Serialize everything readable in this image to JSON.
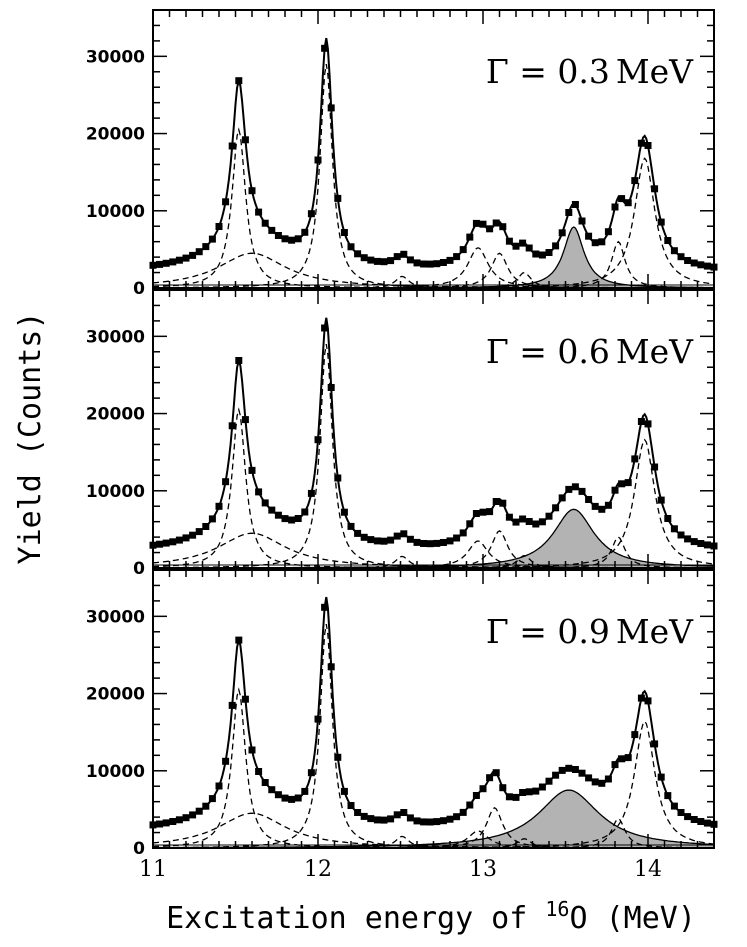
{
  "chart_data": {
    "type": "line",
    "xlabel_prefix": "Excitation energy of ",
    "xlabel_mass": "16",
    "xlabel_suffix": "O (MeV)",
    "ylabel": "Yield (Counts)",
    "xlim": [
      11.0,
      14.4
    ],
    "ylim": [
      0,
      36000
    ],
    "x_ticks": [
      11,
      12,
      13,
      14
    ],
    "y_ticks": [
      0,
      10000,
      20000,
      30000
    ],
    "legend": "none",
    "panels": [
      {
        "label_prefix": "Γ = ",
        "label_value": "0.3",
        "label_unit": "MeV",
        "background": 2000,
        "data_points": "yield_counts",
        "components": [
          {
            "name": "11.52 MeV peak",
            "center": 11.52,
            "amplitude": 20500,
            "width": 0.1,
            "shaded": false
          },
          {
            "name": "broad 11.6 MeV",
            "center": 11.6,
            "amplitude": 4500,
            "width": 0.5,
            "shaded": false
          },
          {
            "name": "12.05 MeV peak",
            "center": 12.05,
            "amplitude": 29000,
            "width": 0.09,
            "shaded": false
          },
          {
            "name": "12.5 MeV bump",
            "center": 12.51,
            "amplitude": 1500,
            "width": 0.1,
            "shaded": false
          },
          {
            "name": "13.0 MeV",
            "center": 12.97,
            "amplitude": 5200,
            "width": 0.15,
            "shaded": false
          },
          {
            "name": "13.1 MeV",
            "center": 13.1,
            "amplitude": 4500,
            "width": 0.12,
            "shaded": false
          },
          {
            "name": "13.25 MeV",
            "center": 13.25,
            "amplitude": 2000,
            "width": 0.1,
            "shaded": false
          },
          {
            "name": "broad state",
            "center": 13.55,
            "amplitude": 7900,
            "width": 0.15,
            "shaded": true
          },
          {
            "name": "13.82 MeV",
            "center": 13.82,
            "amplitude": 6000,
            "width": 0.1,
            "shaded": false
          },
          {
            "name": "13.98 MeV",
            "center": 13.98,
            "amplitude": 16800,
            "width": 0.15,
            "shaded": false
          }
        ]
      },
      {
        "label_prefix": "Γ = ",
        "label_value": "0.6",
        "label_unit": "MeV",
        "background": 2000,
        "data_points": "yield_counts",
        "components": [
          {
            "name": "11.52 MeV peak",
            "center": 11.52,
            "amplitude": 20500,
            "width": 0.1,
            "shaded": false
          },
          {
            "name": "broad 11.6 MeV",
            "center": 11.6,
            "amplitude": 4500,
            "width": 0.5,
            "shaded": false
          },
          {
            "name": "12.05 MeV peak",
            "center": 12.05,
            "amplitude": 29000,
            "width": 0.09,
            "shaded": false
          },
          {
            "name": "12.5 MeV bump",
            "center": 12.51,
            "amplitude": 1500,
            "width": 0.1,
            "shaded": false
          },
          {
            "name": "13.0 MeV",
            "center": 12.97,
            "amplitude": 3500,
            "width": 0.15,
            "shaded": false
          },
          {
            "name": "13.1 MeV",
            "center": 13.1,
            "amplitude": 4800,
            "width": 0.12,
            "shaded": false
          },
          {
            "name": "13.25 MeV",
            "center": 13.25,
            "amplitude": 1600,
            "width": 0.1,
            "shaded": false
          },
          {
            "name": "broad state",
            "center": 13.55,
            "amplitude": 7600,
            "width": 0.3,
            "shaded": true
          },
          {
            "name": "13.82 MeV",
            "center": 13.82,
            "amplitude": 4000,
            "width": 0.1,
            "shaded": false
          },
          {
            "name": "13.98 MeV",
            "center": 13.98,
            "amplitude": 16600,
            "width": 0.15,
            "shaded": false
          }
        ]
      },
      {
        "label_prefix": "Γ = ",
        "label_value": "0.9",
        "label_unit": "MeV",
        "background": 2000,
        "data_points": "yield_counts",
        "components": [
          {
            "name": "11.52 MeV peak",
            "center": 11.52,
            "amplitude": 20500,
            "width": 0.1,
            "shaded": false
          },
          {
            "name": "broad 11.6 MeV",
            "center": 11.6,
            "amplitude": 4500,
            "width": 0.5,
            "shaded": false
          },
          {
            "name": "12.05 MeV peak",
            "center": 12.05,
            "amplitude": 29000,
            "width": 0.09,
            "shaded": false
          },
          {
            "name": "12.5 MeV bump",
            "center": 12.51,
            "amplitude": 1500,
            "width": 0.1,
            "shaded": false
          },
          {
            "name": "13.0 MeV",
            "center": 12.97,
            "amplitude": 2200,
            "width": 0.15,
            "shaded": false
          },
          {
            "name": "13.1 MeV",
            "center": 13.07,
            "amplitude": 5200,
            "width": 0.12,
            "shaded": false
          },
          {
            "name": "13.25 MeV",
            "center": 13.25,
            "amplitude": 1200,
            "width": 0.1,
            "shaded": false
          },
          {
            "name": "broad state",
            "center": 13.52,
            "amplitude": 7500,
            "width": 0.45,
            "shaded": true
          },
          {
            "name": "13.82 MeV",
            "center": 13.82,
            "amplitude": 3800,
            "width": 0.1,
            "shaded": false
          },
          {
            "name": "13.98 MeV",
            "center": 13.98,
            "amplitude": 16400,
            "width": 0.15,
            "shaded": false
          }
        ]
      }
    ]
  }
}
